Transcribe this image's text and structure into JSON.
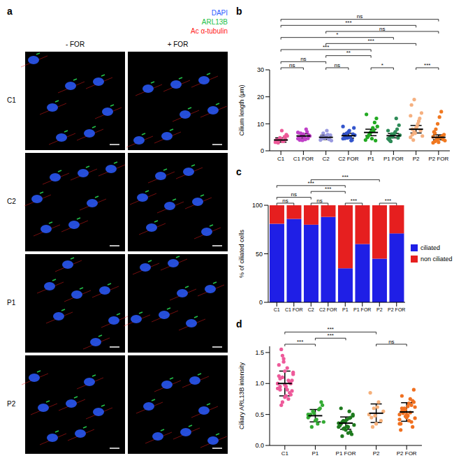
{
  "panel_a": {
    "label": "a",
    "columns": [
      "- FOR",
      "+ FOR"
    ],
    "rows": [
      "C1",
      "C2",
      "P1",
      "P2"
    ],
    "channels": [
      {
        "name": "DAPI",
        "color": "#2a5cff"
      },
      {
        "name": "ARL13B",
        "color": "#22c04a"
      },
      {
        "name": "Ac α-tubulin",
        "color": "#ff2020"
      }
    ]
  },
  "chart_data": [
    {
      "panel": "b",
      "type": "scatter",
      "ylabel": "Cilium length (μm)",
      "categories": [
        "C1",
        "C1 FOR",
        "C2",
        "C2 FOR",
        "P1",
        "P1 FOR",
        "P2",
        "P2 FOR"
      ],
      "colors": [
        "#ee5a9a",
        "#c040c8",
        "#9a9ae0",
        "#3355cc",
        "#22aa22",
        "#2e8b57",
        "#f5b080",
        "#f07820"
      ],
      "values": [
        [
          3.2,
          3.8,
          4.1,
          4.5,
          3.5,
          5.2,
          6.0,
          4.0,
          3.0,
          4.8,
          7.5,
          3.6,
          4.2,
          5.5
        ],
        [
          4.5,
          5.0,
          5.5,
          6.2,
          4.2,
          7.0,
          5.8,
          4.8,
          6.5,
          3.9,
          5.2,
          8.0,
          4.6,
          5.5,
          6.8,
          4.0
        ],
        [
          4.0,
          4.5,
          5.0,
          5.5,
          6.0,
          4.2,
          3.8,
          5.2,
          6.5,
          4.8,
          7.5,
          4.4,
          5.8
        ],
        [
          4.5,
          5.5,
          6.5,
          7.0,
          5.0,
          4.0,
          8.5,
          6.0,
          5.2,
          4.8,
          7.5,
          3.8,
          6.2,
          5.8,
          9.0,
          4.6
        ],
        [
          4.0,
          5.0,
          6.0,
          7.0,
          8.5,
          10.5,
          12.0,
          13.5,
          5.5,
          6.5,
          4.5,
          7.5,
          3.8,
          9.0
        ],
        [
          4.5,
          5.0,
          5.5,
          6.0,
          7.0,
          8.0,
          9.5,
          4.2,
          3.5,
          5.2,
          6.5,
          12.0,
          4.8,
          5.8,
          7.5,
          3.8,
          6.2
        ],
        [
          5.0,
          6.0,
          7.0,
          8.5,
          10.0,
          12.0,
          14.0,
          17.0,
          4.0,
          6.5,
          9.0,
          11.0,
          7.5,
          5.5,
          13.0,
          8.0,
          19.0
        ],
        [
          3.0,
          3.5,
          4.0,
          4.5,
          5.0,
          5.5,
          6.0,
          7.0,
          8.0,
          10.0,
          12.5,
          14.5,
          4.2,
          3.8,
          5.2,
          6.5,
          4.8,
          3.2
        ]
      ],
      "means": [
        4.0,
        5.5,
        5.0,
        5.6,
        6.8,
        5.6,
        8.0,
        5.0
      ],
      "errors": [
        0.8,
        0.8,
        0.8,
        0.9,
        1.2,
        0.8,
        1.4,
        0.9
      ],
      "ylim": [
        0,
        30
      ],
      "yticks": [
        0,
        10,
        20,
        30
      ],
      "comparisons": [
        {
          "from": "C1",
          "to": "C1 FOR",
          "label": "ns"
        },
        {
          "from": "C2",
          "to": "C2 FOR",
          "label": "ns"
        },
        {
          "from": "P1",
          "to": "P1 FOR",
          "label": "*"
        },
        {
          "from": "P2",
          "to": "P2 FOR",
          "label": "***"
        },
        {
          "from": "C1",
          "to": "C2",
          "label": "ns"
        },
        {
          "from": "C2",
          "to": "P1",
          "label": "**"
        },
        {
          "from": "C1",
          "to": "P1",
          "label": "***"
        },
        {
          "from": "C1",
          "to": "P1 FOR",
          "label": "*"
        },
        {
          "from": "C2",
          "to": "P2",
          "label": "***"
        },
        {
          "from": "C1",
          "to": "P2",
          "label": "***"
        },
        {
          "from": "C2",
          "to": "P2 FOR",
          "label": "ns"
        },
        {
          "from": "C1",
          "to": "P2 FOR",
          "label": "ns"
        }
      ]
    },
    {
      "panel": "c",
      "type": "bar",
      "stacked": true,
      "legend": "right",
      "ylabel": "% of ciliated cells",
      "categories": [
        "C1",
        "C1 FOR",
        "C2",
        "C2 FOR",
        "P1",
        "P1 FOR",
        "P2",
        "P2 FOR"
      ],
      "series": [
        {
          "name": "ciliated",
          "color": "#1f1fe6",
          "values": [
            81,
            86,
            80,
            88,
            35,
            60,
            45,
            71
          ]
        },
        {
          "name": "non ciliated",
          "color": "#e61f1f",
          "values": [
            19,
            14,
            20,
            12,
            65,
            40,
            55,
            29
          ]
        }
      ],
      "ylim": [
        0,
        100
      ],
      "yticks": [
        0,
        50,
        100
      ],
      "comparisons": [
        {
          "from": "C1",
          "to": "C1 FOR",
          "label": "ns"
        },
        {
          "from": "C2",
          "to": "C2 FOR",
          "label": "ns"
        },
        {
          "from": "P1",
          "to": "P1 FOR",
          "label": "***"
        },
        {
          "from": "P2",
          "to": "P2 FOR",
          "label": "***"
        },
        {
          "from": "C1",
          "to": "C2",
          "label": "ns"
        },
        {
          "from": "C2",
          "to": "P1",
          "label": "***"
        },
        {
          "from": "C1",
          "to": "P1",
          "label": "***"
        },
        {
          "from": "C2",
          "to": "P2",
          "label": "***"
        }
      ]
    },
    {
      "panel": "d",
      "type": "scatter",
      "ylabel": "Ciliary ARL13B intensity",
      "categories": [
        "C1",
        "P1",
        "P1 FOR",
        "P2",
        "P2 FOR"
      ],
      "colors": [
        "#ee5a9a",
        "#33aa33",
        "#1e7a1e",
        "#f5b07a",
        "#f07020"
      ],
      "values": [
        [
          1.0,
          0.95,
          1.1,
          1.2,
          0.9,
          0.85,
          1.05,
          1.3,
          1.55,
          1.4,
          0.8,
          0.75,
          1.0,
          1.15,
          0.92,
          1.08,
          0.7,
          0.98,
          1.25,
          1.02,
          0.88,
          1.12,
          0.65,
          1.35,
          0.95,
          1.05,
          0.82,
          1.18,
          1.0,
          0.9,
          1.45,
          0.78
        ],
        [
          0.45,
          0.5,
          0.55,
          0.4,
          0.35,
          0.6,
          0.65,
          0.48,
          0.3,
          0.52,
          0.42,
          0.58,
          0.7,
          0.38,
          0.5
        ],
        [
          0.3,
          0.35,
          0.4,
          0.25,
          0.2,
          0.45,
          0.5,
          0.32,
          0.38,
          0.28,
          0.42,
          0.55,
          0.18,
          0.33,
          0.36,
          0.6,
          0.27,
          0.4,
          0.3,
          0.22,
          0.48,
          0.35,
          0.15,
          0.38,
          0.31,
          0.44
        ],
        [
          0.5,
          0.45,
          0.6,
          0.35,
          0.7,
          0.4,
          0.55,
          0.85,
          0.3,
          0.48,
          0.62
        ],
        [
          0.5,
          0.55,
          0.6,
          0.45,
          0.4,
          0.65,
          0.7,
          0.35,
          0.52,
          0.58,
          0.48,
          0.75,
          0.3,
          0.62,
          0.42,
          0.8,
          0.55,
          0.5,
          0.68,
          0.38,
          0.9,
          0.25,
          0.57,
          0.47,
          0.63,
          0.53,
          0.72,
          0.44,
          0.35,
          0.6
        ]
      ],
      "means": [
        1.0,
        0.48,
        0.36,
        0.52,
        0.54
      ],
      "errors": [
        0.2,
        0.1,
        0.1,
        0.15,
        0.15
      ],
      "ylim": [
        0,
        1.6
      ],
      "yticks": [
        {
          "value": 0,
          "label": "0.0"
        },
        {
          "value": 0.5,
          "label": "0.5"
        },
        {
          "value": 1,
          "label": "1.0"
        },
        {
          "value": 1.5,
          "label": "1.5"
        }
      ],
      "comparisons": [
        {
          "from": "C1",
          "to": "P1",
          "label": "***"
        },
        {
          "from": "P1",
          "to": "P1 FOR",
          "label": "***"
        },
        {
          "from": "P2",
          "to": "P2 FOR",
          "label": "ns"
        },
        {
          "from": "C1",
          "to": "P2",
          "label": "***"
        }
      ]
    }
  ]
}
